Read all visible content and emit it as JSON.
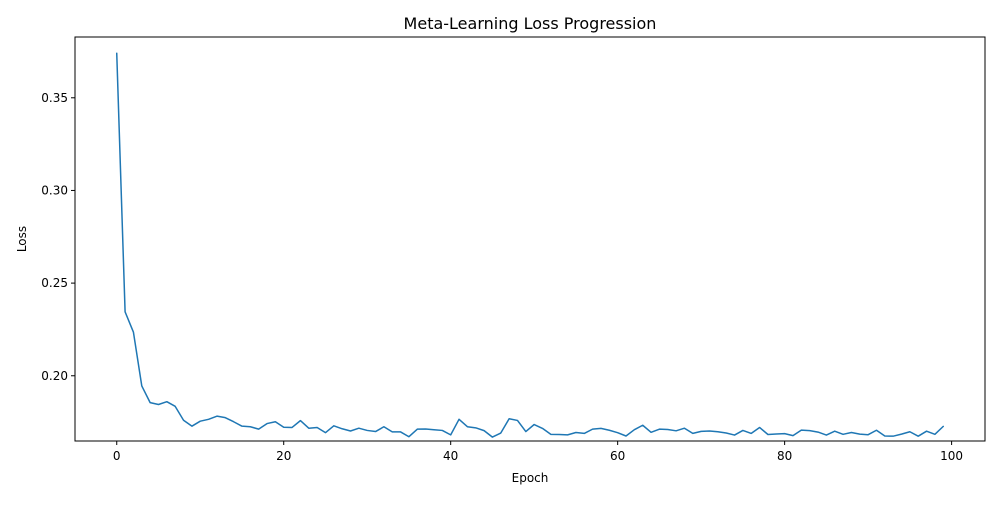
{
  "chart_data": {
    "type": "line",
    "title": "Meta-Learning Loss Progression",
    "xlabel": "Epoch",
    "ylabel": "Loss",
    "xlim": [
      -5,
      104
    ],
    "ylim": [
      0.1648,
      0.3828
    ],
    "grid": false,
    "legend": "none",
    "line_color": "#1f77b4",
    "xticks": [
      {
        "value": 0,
        "label": "0"
      },
      {
        "value": 20,
        "label": "20"
      },
      {
        "value": 40,
        "label": "40"
      },
      {
        "value": 60,
        "label": "60"
      },
      {
        "value": 80,
        "label": "80"
      },
      {
        "value": 100,
        "label": "100"
      }
    ],
    "yticks": [
      {
        "value": 0.2,
        "label": "0.20"
      },
      {
        "value": 0.25,
        "label": "0.25"
      },
      {
        "value": 0.3,
        "label": "0.30"
      },
      {
        "value": 0.35,
        "label": "0.35"
      }
    ],
    "series": [
      {
        "x": [
          0,
          1,
          2,
          3,
          4,
          5,
          6,
          7,
          8,
          9,
          10,
          11,
          12,
          13,
          14,
          15,
          16,
          17,
          18,
          19,
          20,
          21,
          22,
          23,
          24,
          25,
          26,
          27,
          28,
          29,
          30,
          31,
          32,
          33,
          34,
          35,
          36,
          37,
          38,
          39,
          40,
          41,
          42,
          43,
          44,
          45,
          46,
          47,
          48,
          49,
          50,
          51,
          52,
          53,
          54,
          55,
          56,
          57,
          58,
          59,
          60,
          61,
          62,
          63,
          64,
          65,
          66,
          67,
          68,
          69,
          70,
          71,
          72,
          73,
          74,
          75,
          76,
          77,
          78,
          79,
          80,
          81,
          82,
          83,
          84,
          85,
          86,
          87,
          88,
          89,
          90,
          91,
          92,
          93,
          94,
          95,
          96,
          97,
          98,
          99
        ],
        "values": [
          0.374,
          0.2345,
          0.2235,
          0.1945,
          0.1855,
          0.1845,
          0.186,
          0.1835,
          0.176,
          0.1728,
          0.1755,
          0.1765,
          0.1782,
          0.1774,
          0.1752,
          0.1728,
          0.1725,
          0.1712,
          0.1742,
          0.1752,
          0.1722,
          0.1721,
          0.1758,
          0.1717,
          0.1721,
          0.1693,
          0.173,
          0.1714,
          0.1702,
          0.1717,
          0.1705,
          0.1699,
          0.1725,
          0.1697,
          0.1697,
          0.1671,
          0.1712,
          0.1713,
          0.1709,
          0.1705,
          0.1681,
          0.1765,
          0.1725,
          0.1719,
          0.1704,
          0.1669,
          0.1691,
          0.1768,
          0.1759,
          0.1699,
          0.1737,
          0.1716,
          0.1684,
          0.1683,
          0.1681,
          0.1694,
          0.1689,
          0.1712,
          0.1716,
          0.1706,
          0.1693,
          0.1675,
          0.1709,
          0.1733,
          0.1695,
          0.1712,
          0.171,
          0.1703,
          0.1717,
          0.1689,
          0.17,
          0.1702,
          0.1698,
          0.1691,
          0.168,
          0.1705,
          0.1689,
          0.1721,
          0.1683,
          0.1686,
          0.1688,
          0.1677,
          0.1707,
          0.1704,
          0.1696,
          0.168,
          0.1701,
          0.1684,
          0.1694,
          0.1685,
          0.1682,
          0.1706,
          0.1675,
          0.1674,
          0.1685,
          0.1698,
          0.1674,
          0.1701,
          0.1684,
          0.1727
        ]
      }
    ]
  }
}
